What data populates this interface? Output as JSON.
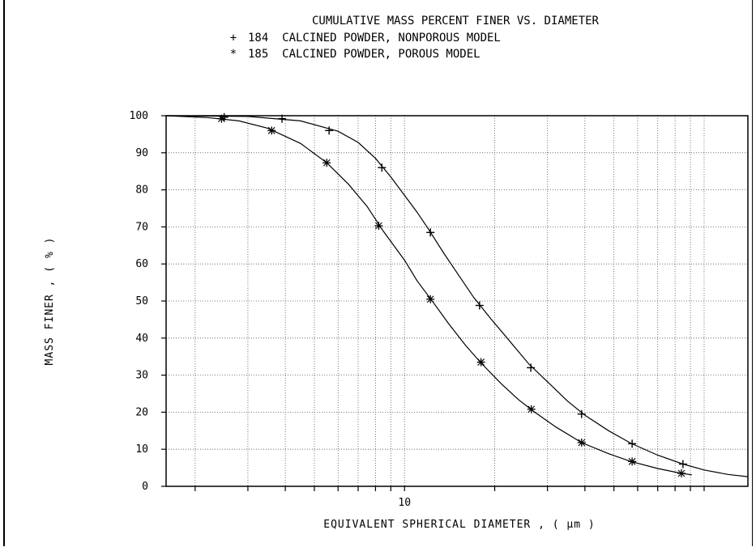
{
  "chart_data": {
    "type": "line",
    "title": "CUMULATIVE MASS PERCENT  FINER  VS. DIAMETER",
    "xlabel": "EQUIVALENT SPHERICAL DIAMETER ,  ( μm )",
    "ylabel": "MASS  FINER   ,  ( % )",
    "x_scale": "log",
    "xlim": [
      1.6,
      140
    ],
    "ylim": [
      0,
      100
    ],
    "x_ticklabels": [
      "10"
    ],
    "y_ticks": [
      0,
      10,
      20,
      30,
      40,
      50,
      60,
      70,
      80,
      90,
      100
    ],
    "y_ticklabels": [
      "0",
      "10",
      "20",
      "30",
      "40",
      "50",
      "60",
      "70",
      "80",
      "90",
      "100"
    ],
    "grid": true,
    "series": [
      {
        "name": "184  CALCINED POWDER, NONPOROUS MODEL",
        "marker": "+",
        "points": [
          [
            2.5,
            99.6
          ],
          [
            3.9,
            99.2
          ],
          [
            5.6,
            96
          ],
          [
            8.4,
            86
          ],
          [
            12.2,
            68.5
          ],
          [
            17.8,
            48.8
          ],
          [
            26.4,
            32
          ],
          [
            39,
            19.5
          ],
          [
            57.5,
            11.5
          ],
          [
            85,
            6
          ]
        ],
        "curve": [
          [
            1.6,
            100
          ],
          [
            3.0,
            99.8
          ],
          [
            4.5,
            98.6
          ],
          [
            6.0,
            95.8
          ],
          [
            7.0,
            92.8
          ],
          [
            8.0,
            88.5
          ],
          [
            9.0,
            83.5
          ],
          [
            10.0,
            78.5
          ],
          [
            11.0,
            74
          ],
          [
            12.0,
            69.5
          ],
          [
            13.5,
            63
          ],
          [
            15.0,
            57.5
          ],
          [
            17.0,
            51
          ],
          [
            19.5,
            45
          ],
          [
            22.0,
            40
          ],
          [
            26.0,
            33
          ],
          [
            30.0,
            28.2
          ],
          [
            35.0,
            23
          ],
          [
            40.0,
            19.2
          ],
          [
            48.0,
            15
          ],
          [
            57.0,
            11.6
          ],
          [
            70.0,
            8.4
          ],
          [
            85.0,
            6.0
          ],
          [
            100.0,
            4.4
          ],
          [
            120.0,
            3.2
          ],
          [
            140.0,
            2.6
          ]
        ]
      },
      {
        "name": "185  CALCINED POWDER, POROUS MODEL",
        "marker": "*",
        "points": [
          [
            2.45,
            99.2
          ],
          [
            3.6,
            96
          ],
          [
            5.5,
            87.3
          ],
          [
            8.2,
            70.3
          ],
          [
            12.2,
            50.5
          ],
          [
            18.0,
            33.5
          ],
          [
            26.5,
            20.8
          ],
          [
            39,
            11.8
          ],
          [
            57.5,
            6.7
          ],
          [
            84,
            3.5
          ]
        ],
        "curve": [
          [
            1.6,
            100
          ],
          [
            2.2,
            99.5
          ],
          [
            2.8,
            98.6
          ],
          [
            3.5,
            96.6
          ],
          [
            4.5,
            92.5
          ],
          [
            5.5,
            87.3
          ],
          [
            6.5,
            81.5
          ],
          [
            7.5,
            75.5
          ],
          [
            8.5,
            68.8
          ],
          [
            10.0,
            61
          ],
          [
            11.0,
            55.5
          ],
          [
            12.5,
            49.5
          ],
          [
            14.0,
            44
          ],
          [
            16.0,
            38
          ],
          [
            18.0,
            33.3
          ],
          [
            21.0,
            27.7
          ],
          [
            24.0,
            23.4
          ],
          [
            27.0,
            20.2
          ],
          [
            32.0,
            16
          ],
          [
            39.0,
            11.8
          ],
          [
            48.0,
            8.8
          ],
          [
            57.0,
            6.7
          ],
          [
            70.0,
            4.8
          ],
          [
            84.0,
            3.5
          ],
          [
            91.0,
            3.1
          ]
        ]
      }
    ]
  }
}
